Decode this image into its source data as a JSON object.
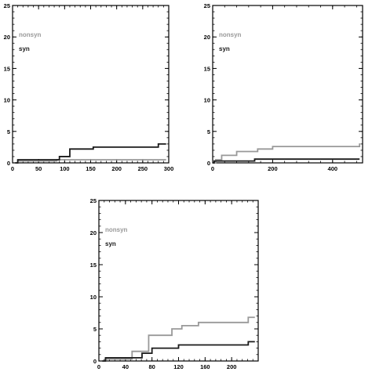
{
  "colors": {
    "nonsyn": "#999999",
    "syn": "#1a1a1a",
    "axis": "#000000",
    "background": "#ffffff"
  },
  "chart_data": [
    {
      "type": "line",
      "step": true,
      "xlim": [
        0,
        300
      ],
      "ylim": [
        0,
        25
      ],
      "xticks": [
        0,
        50,
        100,
        150,
        200,
        250,
        300
      ],
      "yticks": [
        0,
        5,
        10,
        15,
        20,
        25
      ],
      "xtick_labels": [
        "0",
        "50",
        "100",
        "150",
        "200",
        "250",
        "300"
      ],
      "ytick_labels": [
        "0",
        "5",
        "10",
        "15",
        "20",
        "25"
      ],
      "legend": [
        "nonsyn",
        "syn"
      ],
      "legend_position": "top-left",
      "series": [
        {
          "name": "nonsyn",
          "color": "#999999",
          "x": [
            5,
            10,
            80,
            85,
            280,
            295
          ],
          "y": [
            0,
            0.3,
            0.3,
            0.5,
            0.5,
            0.5
          ]
        },
        {
          "name": "syn",
          "color": "#1a1a1a",
          "x": [
            5,
            10,
            80,
            90,
            105,
            110,
            150,
            155,
            275,
            280,
            295
          ],
          "y": [
            0,
            0.5,
            0.5,
            1.0,
            1.0,
            2.2,
            2.2,
            2.5,
            2.5,
            3.0,
            3.0
          ]
        }
      ]
    },
    {
      "type": "line",
      "step": true,
      "xlim": [
        0,
        500
      ],
      "ylim": [
        0,
        25
      ],
      "xticks": [
        0,
        200,
        400
      ],
      "yticks": [
        0,
        5,
        10,
        15,
        20,
        25
      ],
      "xtick_labels": [
        "0",
        "200",
        "400"
      ],
      "ytick_labels": [
        "0",
        "5",
        "10",
        "15",
        "20",
        "25"
      ],
      "legend": [
        "nonsyn",
        "syn"
      ],
      "legend_position": "top-left",
      "series": [
        {
          "name": "nonsyn",
          "color": "#999999",
          "x": [
            0,
            10,
            30,
            60,
            80,
            150,
            200,
            480,
            490
          ],
          "y": [
            0,
            0.5,
            1.2,
            1.2,
            1.8,
            2.2,
            2.6,
            2.6,
            3.1
          ]
        },
        {
          "name": "syn",
          "color": "#1a1a1a",
          "x": [
            0,
            5,
            130,
            140,
            490
          ],
          "y": [
            0,
            0.3,
            0.3,
            0.6,
            0.6
          ]
        }
      ]
    },
    {
      "type": "line",
      "step": true,
      "xlim": [
        0,
        240
      ],
      "ylim": [
        0,
        25
      ],
      "xticks": [
        0,
        40,
        80,
        120,
        160,
        200
      ],
      "yticks": [
        0,
        5,
        10,
        15,
        20,
        25
      ],
      "xtick_labels": [
        "0",
        "40",
        "80",
        "120",
        "160",
        "200"
      ],
      "ytick_labels": [
        "0",
        "5",
        "10",
        "15",
        "20",
        "25"
      ],
      "legend": [
        "nonsyn",
        "syn"
      ],
      "legend_position": "top-left",
      "series": [
        {
          "name": "nonsyn",
          "color": "#999999",
          "x": [
            5,
            10,
            40,
            50,
            75,
            100,
            110,
            120,
            125,
            150,
            225,
            235
          ],
          "y": [
            0,
            0.3,
            0.3,
            1.5,
            4.0,
            4.0,
            5.0,
            5.0,
            5.5,
            6.0,
            6.8,
            6.8
          ]
        },
        {
          "name": "syn",
          "color": "#1a1a1a",
          "x": [
            5,
            10,
            55,
            65,
            70,
            80,
            110,
            120,
            225,
            235
          ],
          "y": [
            0,
            0.5,
            0.5,
            1.2,
            1.2,
            2.0,
            2.0,
            2.5,
            3.0,
            3.0
          ]
        }
      ]
    }
  ]
}
